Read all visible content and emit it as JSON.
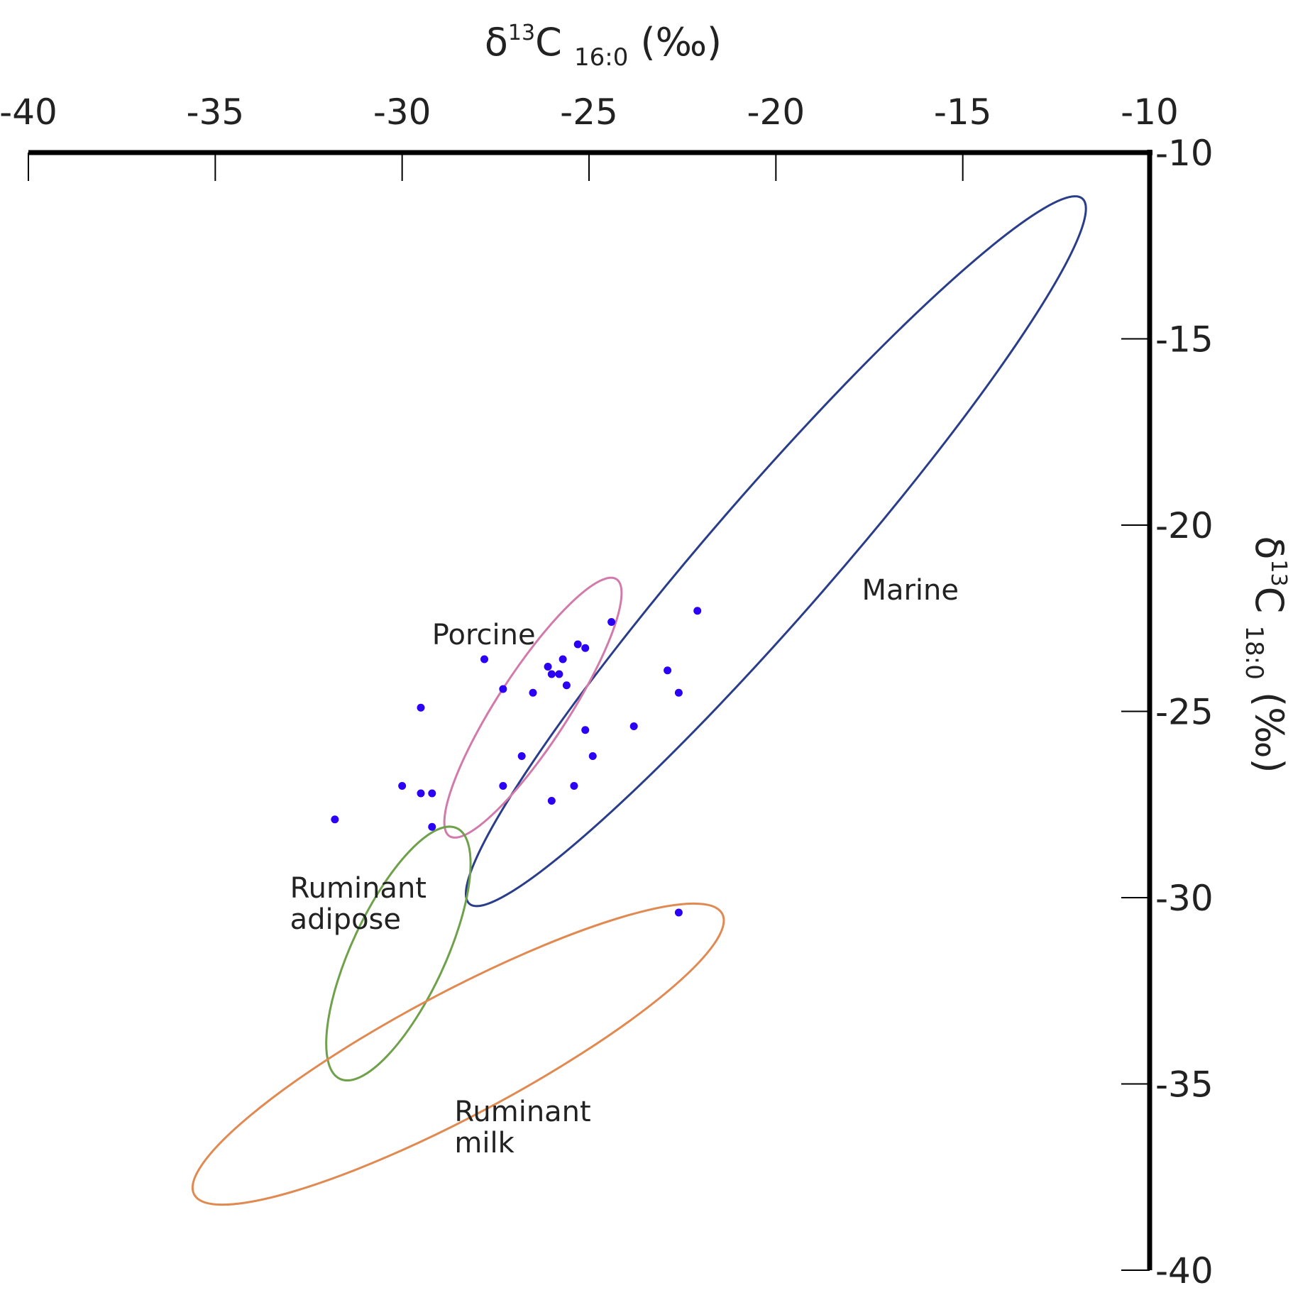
{
  "chart_data": {
    "type": "scatter",
    "title": "",
    "xlabel": {
      "delta": "δ",
      "sup": "13",
      "element": "C",
      "sub": "16:0",
      "unit": "(‰)"
    },
    "ylabel": {
      "delta": "δ",
      "sup": "13",
      "element": "C",
      "sub": "18:0",
      "unit": "(‰)"
    },
    "x_axis_position": "top",
    "y_axis_position": "right",
    "xlim": [
      -40,
      -10
    ],
    "ylim": [
      -40,
      -10
    ],
    "x_ticks": [
      "-40",
      "-35",
      "-30",
      "-25",
      "-20",
      "-15",
      "-10"
    ],
    "y_ticks": [
      "-10",
      "-15",
      "-20",
      "-25",
      "-30",
      "-35",
      "-40"
    ],
    "grid": false,
    "reference_regions": [
      {
        "name": "Marine",
        "color": "#2a3d8a",
        "cx": -20.0,
        "cy": -20.7,
        "rx_along": 12.5,
        "ry_across": 1.65,
        "angle_deg": 49
      },
      {
        "name": "Porcine",
        "color": "#d27aaa",
        "cx": -26.5,
        "cy": -24.9,
        "rx_along": 4.1,
        "ry_across": 0.95,
        "angle_deg": 57
      },
      {
        "name": "Ruminant adipose",
        "color": "#6ea14a",
        "cx": -30.1,
        "cy": -31.5,
        "rx_along": 3.7,
        "ry_across": 1.25,
        "angle_deg": 65
      },
      {
        "name": "Ruminant milk",
        "color": "#e08a52",
        "cx": -28.5,
        "cy": -34.2,
        "rx_along": 8.0,
        "ry_across": 1.65,
        "angle_deg": 28
      }
    ],
    "region_labels": [
      {
        "lines": [
          "Marine"
        ],
        "x": -17.7,
        "y": -22.0
      },
      {
        "lines": [
          "Porcine"
        ],
        "x": -29.2,
        "y": -23.2
      },
      {
        "lines": [
          "Ruminant",
          "adipose"
        ],
        "x": -33.0,
        "y": -30.0
      },
      {
        "lines": [
          "Ruminant",
          "milk"
        ],
        "x": -28.6,
        "y": -36.0
      }
    ],
    "series": [
      {
        "marker_color": "#2b00f5",
        "points": [
          [
            -24.4,
            -22.6
          ],
          [
            -22.1,
            -22.3
          ],
          [
            -25.3,
            -23.2
          ],
          [
            -25.1,
            -23.3
          ],
          [
            -27.8,
            -23.6
          ],
          [
            -25.7,
            -23.6
          ],
          [
            -26.1,
            -23.8
          ],
          [
            -26.0,
            -24.0
          ],
          [
            -25.8,
            -24.0
          ],
          [
            -22.9,
            -23.9
          ],
          [
            -27.3,
            -24.4
          ],
          [
            -25.6,
            -24.3
          ],
          [
            -26.5,
            -24.5
          ],
          [
            -22.6,
            -24.5
          ],
          [
            -29.5,
            -24.9
          ],
          [
            -23.8,
            -25.4
          ],
          [
            -25.1,
            -25.5
          ],
          [
            -26.8,
            -26.2
          ],
          [
            -24.9,
            -26.2
          ],
          [
            -30.0,
            -27.0
          ],
          [
            -27.3,
            -27.0
          ],
          [
            -25.4,
            -27.0
          ],
          [
            -29.5,
            -27.2
          ],
          [
            -29.2,
            -27.2
          ],
          [
            -26.0,
            -27.4
          ],
          [
            -31.8,
            -27.9
          ],
          [
            -29.2,
            -28.1
          ],
          [
            -22.6,
            -30.4
          ]
        ]
      }
    ]
  }
}
